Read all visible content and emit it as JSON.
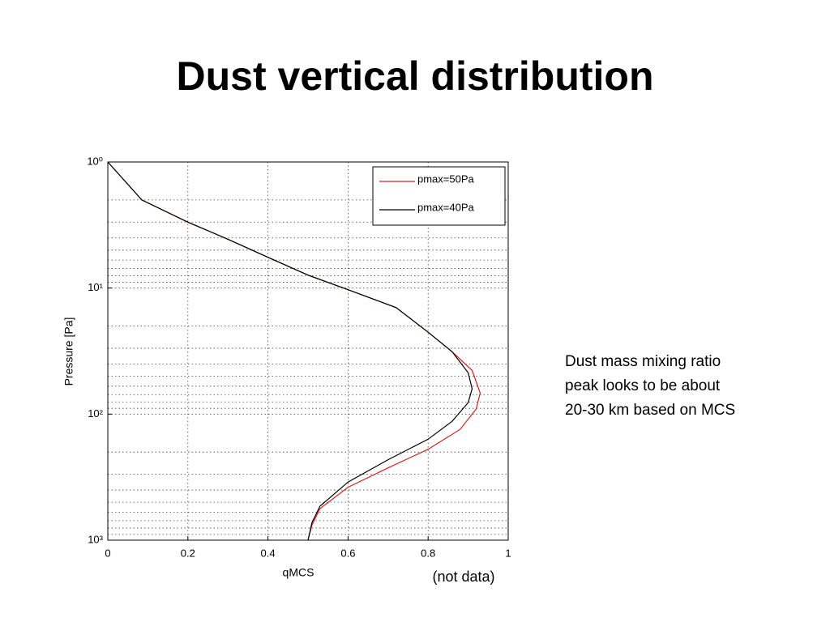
{
  "chart_data": {
    "type": "line",
    "title": "Dust vertical distribution",
    "xlabel": "qMCS",
    "ylabel": "Pressure [Pa]",
    "annotations": [
      "Dust mass mixing ratio",
      "peak looks to be about",
      "20-30 km based on MCS",
      "(not data)"
    ],
    "xlim": [
      0,
      1
    ],
    "xticks": [
      0,
      0.2,
      0.4,
      0.6,
      0.8,
      1
    ],
    "ylim": [
      1,
      1000
    ],
    "ylog": true,
    "yinverted": true,
    "yticks": [
      {
        "value": 1,
        "label": "10⁰"
      },
      {
        "value": 10,
        "label": "10¹"
      },
      {
        "value": 100,
        "label": "10²"
      },
      {
        "value": 1000,
        "label": "10³"
      }
    ],
    "grid": true,
    "legend": "upper right",
    "series": [
      {
        "name": "pmax=50Pa",
        "color": "#d62020",
        "x": [
          0,
          0.085,
          0.2,
          0.3,
          0.4,
          0.5,
          0.6,
          0.72,
          0.8,
          0.86,
          0.91,
          0.93,
          0.92,
          0.88,
          0.8,
          0.7,
          0.6,
          0.53,
          0.51,
          0.5
        ],
        "values": [
          1,
          2,
          3,
          4.1,
          5.7,
          7.9,
          10.3,
          14.3,
          22.4,
          32,
          45,
          68,
          91,
          132,
          190,
          267,
          380,
          562,
          759,
          1000
        ]
      },
      {
        "name": "pmax=40Pa",
        "color": "#000000",
        "x": [
          0,
          0.085,
          0.2,
          0.3,
          0.4,
          0.5,
          0.6,
          0.72,
          0.8,
          0.86,
          0.9,
          0.91,
          0.9,
          0.86,
          0.8,
          0.7,
          0.6,
          0.53,
          0.51,
          0.5
        ],
        "values": [
          1,
          2,
          3,
          4.1,
          5.7,
          7.9,
          10.3,
          14.3,
          22.4,
          32,
          47,
          63,
          81,
          114,
          158,
          230,
          346,
          537,
          724,
          1000
        ]
      }
    ]
  }
}
